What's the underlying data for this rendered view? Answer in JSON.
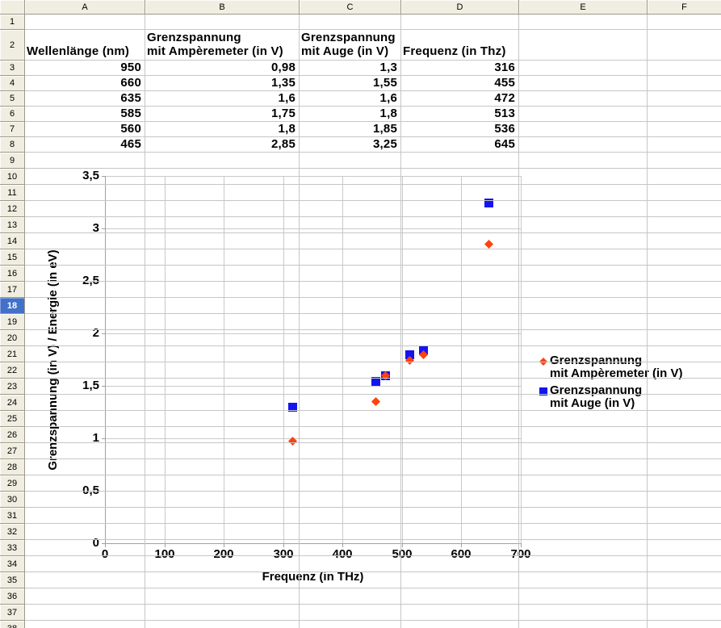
{
  "sheet": {
    "corner_label": "",
    "columns": [
      {
        "letter": "A",
        "width": 149
      },
      {
        "letter": "B",
        "width": 191
      },
      {
        "letter": "C",
        "width": 126
      },
      {
        "letter": "D",
        "width": 146
      },
      {
        "letter": "E",
        "width": 159
      },
      {
        "letter": "F",
        "width": 92
      }
    ],
    "row_header_width": 31,
    "col_header_height": 18,
    "rows_total": 38,
    "selected_row": 18,
    "row_heights": {
      "r1": 19,
      "r2": 38,
      "r3_8": 19,
      "r9_plus": 20
    }
  },
  "table": {
    "header_row_index": 2,
    "headers": [
      "Wellenlänge (nm)",
      "Grenzspannung\nmit Ampèremeter (in V)",
      "Grenzspannung\nmit Auge (in V)",
      "Frequenz (in Thz)"
    ],
    "data_start_row": 3,
    "rows": [
      [
        "950",
        "0,98",
        "1,3",
        "316"
      ],
      [
        "660",
        "1,35",
        "1,55",
        "455"
      ],
      [
        "635",
        "1,6",
        "1,6",
        "472"
      ],
      [
        "585",
        "1,75",
        "1,8",
        "513"
      ],
      [
        "560",
        "1,8",
        "1,85",
        "536"
      ],
      [
        "465",
        "2,85",
        "3,25",
        "645"
      ]
    ]
  },
  "chart_data": {
    "type": "scatter",
    "x": [
      316,
      455,
      472,
      513,
      536,
      645
    ],
    "series": [
      {
        "name": "Grenzspannung mit Ampèremeter (in V)",
        "legend_label": "Grenzspannung\nmit Ampèremeter (in V)",
        "marker": "diamond",
        "color": "#FF420E",
        "values": [
          0.98,
          1.35,
          1.6,
          1.75,
          1.8,
          2.85
        ]
      },
      {
        "name": "Grenzspannung mit Auge (in V)",
        "legend_label": "Grenzspannung\nmit Auge (in V)",
        "marker": "square",
        "color": "#1414F0",
        "values": [
          1.3,
          1.55,
          1.6,
          1.8,
          1.85,
          3.25
        ]
      }
    ],
    "xlabel": "Frequenz (in THz)",
    "ylabel": "Grenzspannung (in V) / Energie (in eV)",
    "xlim": [
      0,
      700
    ],
    "ylim": [
      0,
      3.5
    ],
    "x_ticks": [
      0,
      100,
      200,
      300,
      400,
      500,
      600,
      700
    ],
    "x_tick_labels": [
      "0",
      "100",
      "200",
      "300",
      "400",
      "500",
      "600",
      "700"
    ],
    "y_ticks": [
      0,
      0.5,
      1,
      1.5,
      2,
      2.5,
      3,
      3.5
    ],
    "y_tick_labels": [
      "0",
      "0,5",
      "1",
      "1,5",
      "2",
      "2,5",
      "3",
      "3,5"
    ],
    "grid": true,
    "legend_position": "right"
  },
  "colors": {
    "header_bg": "#F0EEE1",
    "header_border": "#9D9A8B",
    "grid_line": "#C6C6C6",
    "selected_header_bg": "#4371C9",
    "selected_header_text": "#FFFFFF",
    "chart_axis": "#A0A0A0",
    "chart_grid": "#C9C9C9"
  }
}
